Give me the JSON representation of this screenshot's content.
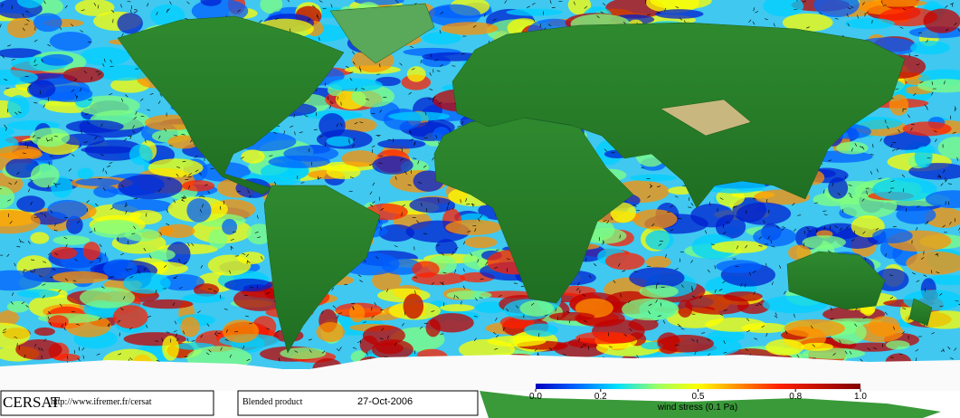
{
  "footer": {
    "logo": "CERSAT",
    "url": "http://www.ifremer.fr/cersat",
    "product": "Blended product",
    "date": "27-Oct-2006"
  },
  "colorbar": {
    "range": [
      0,
      1
    ],
    "label": "wind stress (0.1 Pa)",
    "ticks": [
      {
        "value": 0,
        "label": "0.0"
      },
      {
        "value": 0.2,
        "label": "0.2"
      },
      {
        "value": 0.5,
        "label": "0.5"
      },
      {
        "value": 0.8,
        "label": "0.8"
      },
      {
        "value": 1,
        "label": "1.0"
      }
    ]
  }
}
